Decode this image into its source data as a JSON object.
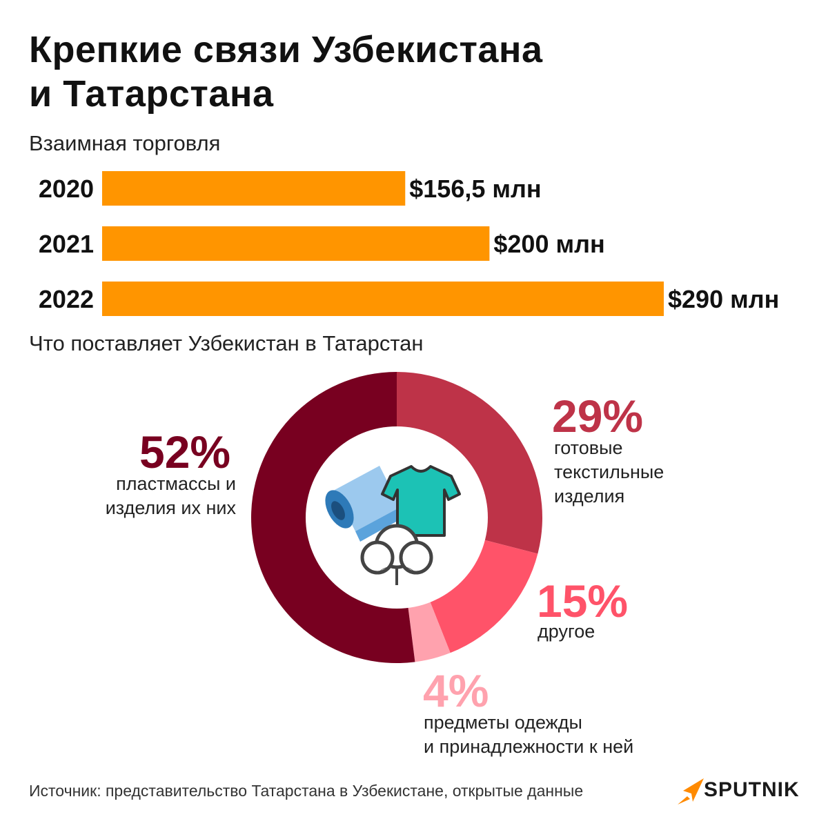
{
  "title": [
    "Крепкие связи Узбекистана",
    "и Татарстана"
  ],
  "bar_section_title": "Взаимная торговля",
  "donut_section_title": "Что поставляет Узбекистан в Татарстан",
  "source": "Источник: представительство Татарстана в Узбекистане, открытые данные",
  "brand": "SPUTNIK",
  "colors": {
    "bar": "#FF9500",
    "slice_plastics": "#780020",
    "slice_textiles": "#BE3348",
    "slice_other": "#FF5369",
    "slice_clothing": "#FFA2AE",
    "logo_orange": "#FF8A00",
    "icon_shirt": "#1CC2B5",
    "icon_roll": "#5BA3DC"
  },
  "chart_data": [
    {
      "type": "bar",
      "orientation": "horizontal",
      "categories": [
        "2020",
        "2021",
        "2022"
      ],
      "values": [
        156.5,
        200,
        290
      ],
      "value_labels": [
        "$156,5 млн",
        "$200 млн",
        "$290 млн"
      ],
      "title": "Взаимная торговля"
    },
    {
      "type": "pie",
      "style": "donut",
      "title": "Что поставляет Узбекистан в Татарстан",
      "slices": [
        {
          "pct_label": "29%",
          "value": 29,
          "label_lines": [
            "готовые",
            "текстильные",
            "изделия"
          ],
          "color": "#BE3348"
        },
        {
          "pct_label": "15%",
          "value": 15,
          "label_lines": [
            "другое"
          ],
          "color": "#FF5369"
        },
        {
          "pct_label": "4%",
          "value": 4,
          "label_lines": [
            "предметы одежды",
            "и принадлежности к ней"
          ],
          "color": "#FFA2AE"
        },
        {
          "pct_label": "52%",
          "value": 52,
          "label_lines": [
            "пластмассы и",
            "изделия их них"
          ],
          "color": "#780020"
        }
      ],
      "center_icons": [
        "fabric-roll-icon",
        "t-shirt-icon",
        "cotton-icon"
      ]
    }
  ]
}
